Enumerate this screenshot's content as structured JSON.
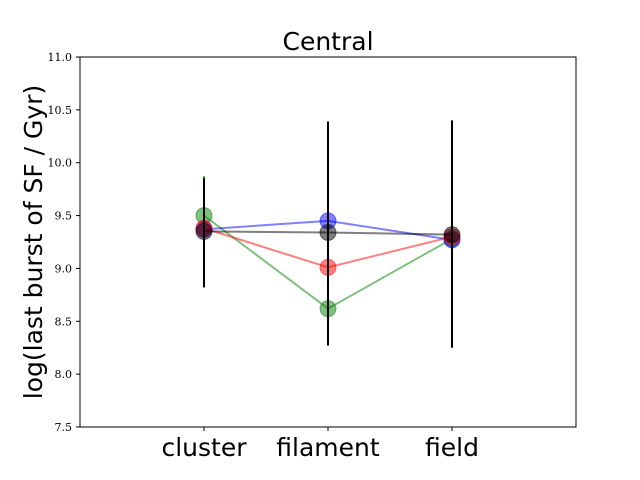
{
  "chart_data": {
    "type": "scatter",
    "title": "Central",
    "xlabel": "",
    "ylabel": "log(last burst of SF / Gyr)",
    "categories": [
      "cluster",
      "filament",
      "field"
    ],
    "ylim": [
      7.5,
      11.0
    ],
    "yticks": [
      "7.5",
      "8.0",
      "8.5",
      "9.0",
      "9.5",
      "10.0",
      "10.5",
      "11.0"
    ],
    "grid": false,
    "legend": "none",
    "series": [
      {
        "color": "#008000",
        "values": [
          9.5,
          8.62,
          9.28
        ],
        "err_low": [
          9.35,
          8.62,
          9.28
        ],
        "err_high": [
          9.87,
          8.62,
          9.28
        ]
      },
      {
        "color": "#0000ff",
        "values": [
          9.37,
          9.45,
          9.27
        ],
        "err_low": [
          9.37,
          9.45,
          9.27
        ],
        "err_high": [
          9.37,
          9.45,
          9.27
        ]
      },
      {
        "color": "#ff0000",
        "values": [
          9.38,
          9.01,
          9.3
        ],
        "err_low": [
          9.38,
          9.01,
          8.73
        ],
        "err_high": [
          9.38,
          9.01,
          9.86
        ]
      },
      {
        "color": "#000000",
        "values": [
          9.35,
          9.34,
          9.32
        ],
        "err_low": [
          8.82,
          8.27,
          8.25
        ],
        "err_high": [
          9.85,
          10.39,
          10.4
        ]
      }
    ]
  }
}
